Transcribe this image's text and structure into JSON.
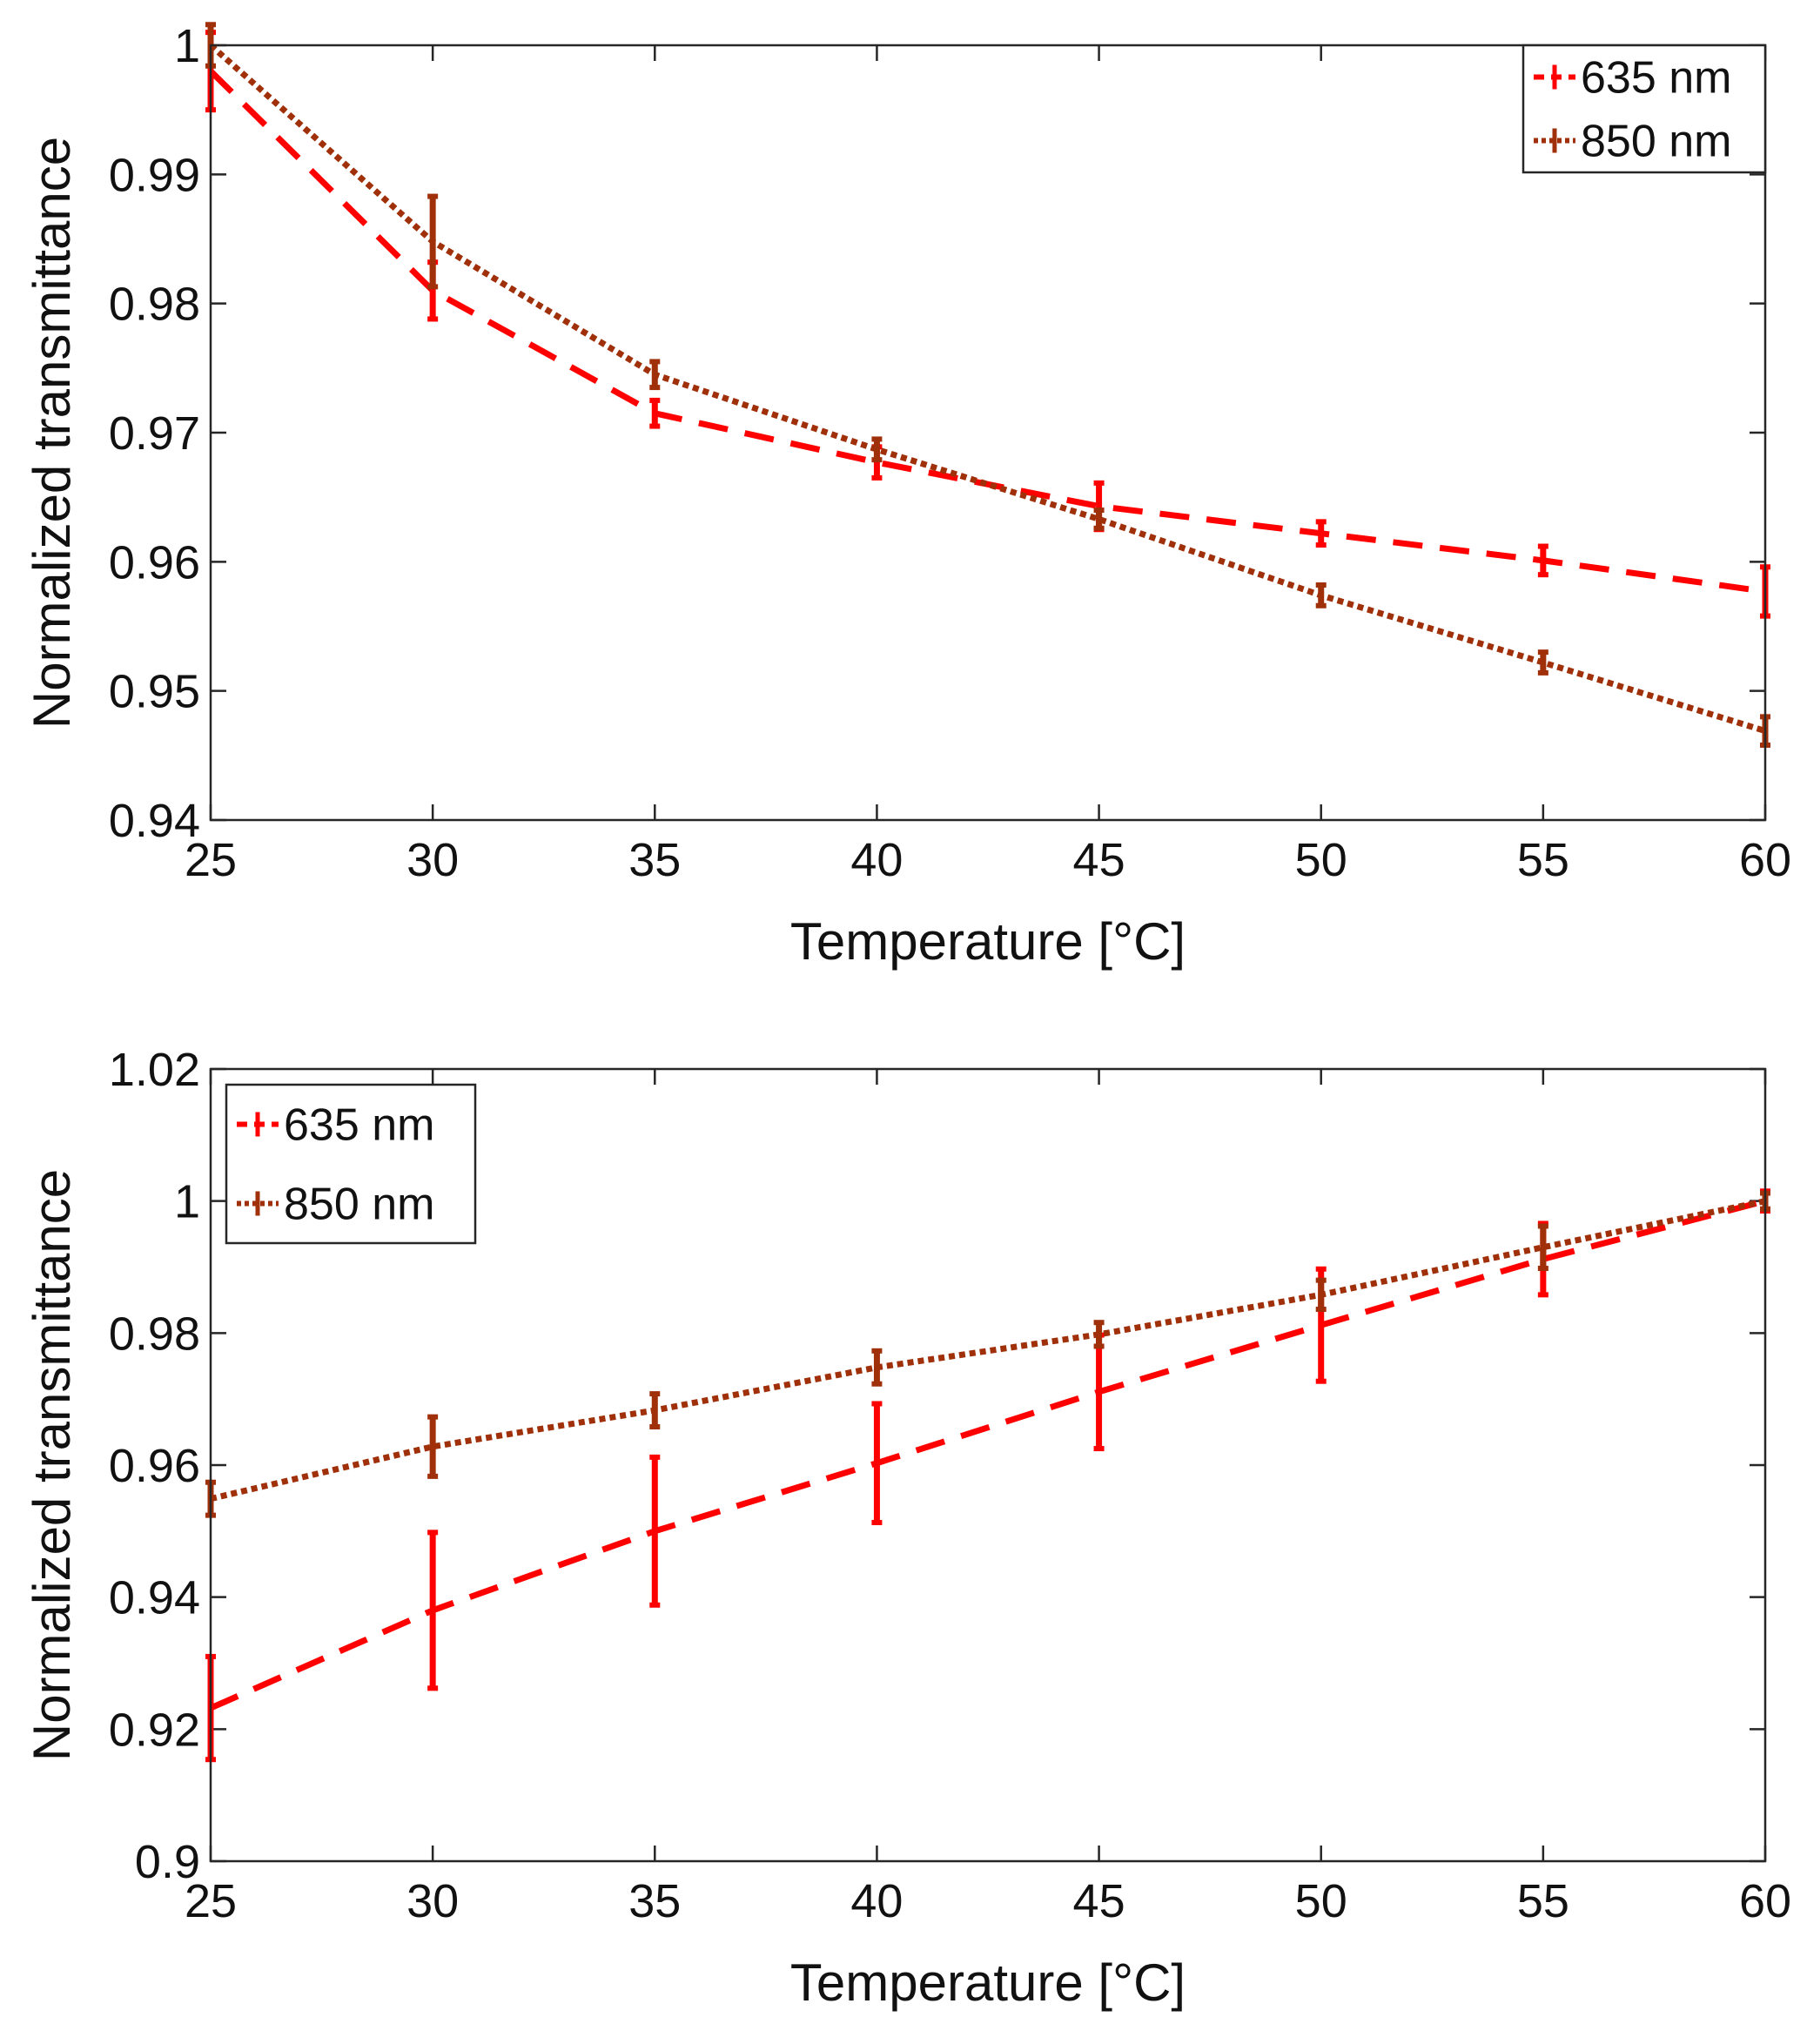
{
  "chart_data": [
    {
      "type": "line",
      "xlabel": "Temperature [°C]",
      "ylabel": "Normalized transmittance",
      "xlim": [
        25,
        60
      ],
      "ylim": [
        0.94,
        1.0
      ],
      "xticks": [
        25,
        30,
        35,
        40,
        45,
        50,
        55,
        60
      ],
      "yticks": [
        0.94,
        0.95,
        0.96,
        0.97,
        0.98,
        0.99,
        1.0
      ],
      "ytick_labels": [
        "0.94",
        "0.95",
        "0.96",
        "0.97",
        "0.98",
        "0.99",
        "1"
      ],
      "legend_position": "top-right",
      "x": [
        25,
        30,
        35,
        40,
        45,
        50,
        55,
        60
      ],
      "series": [
        {
          "name": "635 nm",
          "color": "#ff0000",
          "line_style": "dashed",
          "values": [
            0.998,
            0.981,
            0.9715,
            0.9677,
            0.9643,
            0.9622,
            0.9601,
            0.9577
          ],
          "errors": [
            0.003,
            0.0022,
            0.001,
            0.0012,
            0.0018,
            0.0009,
            0.0011,
            0.0019
          ]
        },
        {
          "name": "850 nm",
          "color": "#a0300a",
          "line_style": "dotted",
          "values": [
            1.0,
            0.9848,
            0.9745,
            0.9687,
            0.9633,
            0.9574,
            0.9522,
            0.9469
          ],
          "errors": [
            0.0016,
            0.0035,
            0.001,
            0.0008,
            0.0007,
            0.0008,
            0.0008,
            0.0011
          ]
        }
      ]
    },
    {
      "type": "line",
      "xlabel": "Temperature [°C]",
      "ylabel": "Normalized transmittance",
      "xlim": [
        25,
        60
      ],
      "ylim": [
        0.9,
        1.02
      ],
      "xticks": [
        25,
        30,
        35,
        40,
        45,
        50,
        55,
        60
      ],
      "yticks": [
        0.9,
        0.92,
        0.94,
        0.96,
        0.98,
        1.0,
        1.02
      ],
      "ytick_labels": [
        "0.9",
        "0.92",
        "0.94",
        "0.96",
        "0.98",
        "1",
        "1.02"
      ],
      "legend_position": "top-left",
      "x": [
        25,
        30,
        35,
        40,
        45,
        50,
        55,
        60
      ],
      "series": [
        {
          "name": "635 nm",
          "color": "#ff0000",
          "line_style": "dashed",
          "values": [
            0.9232,
            0.938,
            0.95,
            0.9603,
            0.9711,
            0.9812,
            0.9912,
            1.0
          ],
          "errors": [
            0.0078,
            0.0118,
            0.0112,
            0.009,
            0.0086,
            0.0085,
            0.0054,
            0.0015
          ]
        },
        {
          "name": "850 nm",
          "color": "#a0300a",
          "line_style": "dotted",
          "values": [
            0.9549,
            0.9628,
            0.9683,
            0.9748,
            0.9798,
            0.9858,
            0.993,
            1.0
          ],
          "errors": [
            0.0025,
            0.0045,
            0.0025,
            0.0025,
            0.0018,
            0.0022,
            0.0032,
            0.0012
          ]
        }
      ]
    }
  ]
}
